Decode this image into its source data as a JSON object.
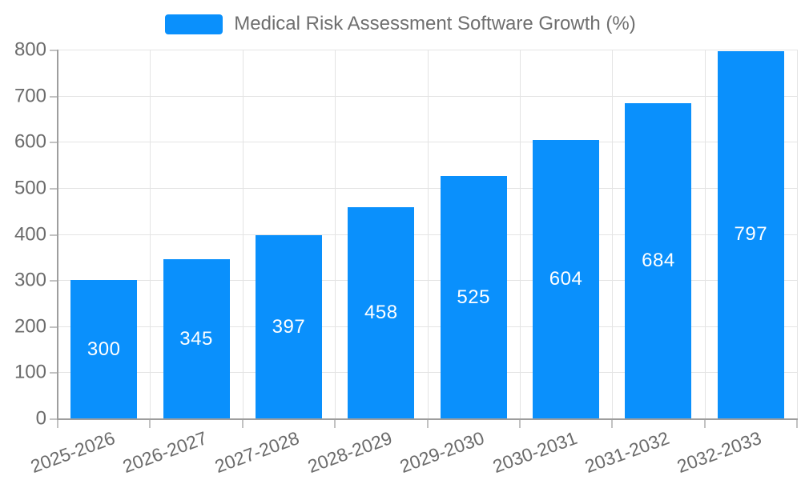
{
  "chart_data": {
    "type": "bar",
    "title": "Medical Risk Assessment Software Growth (%)",
    "categories": [
      "2025-2026",
      "2026-2027",
      "2027-2028",
      "2028-2029",
      "2029-2030",
      "2030-2031",
      "2031-2032",
      "2032-2033"
    ],
    "values": [
      300,
      345,
      397,
      458,
      525,
      604,
      684,
      797
    ],
    "xlabel": "",
    "ylabel": "",
    "ylim": [
      0,
      800
    ],
    "ytick_interval": 100,
    "y_tick_labels": [
      "0",
      "100",
      "200",
      "300",
      "400",
      "500",
      "600",
      "700",
      "800"
    ],
    "grid": true,
    "legend_position": "top",
    "colors": {
      "bar": "#0a90fc",
      "bar_value_label": "#ffffff",
      "axis_line": "#9e9e9e",
      "tick": "#c2c2c2",
      "gridline": "#e4e4e4",
      "axis_text": "#6b6b6b",
      "legend_text": "#6f6f6f",
      "background": "#ffffff"
    }
  }
}
